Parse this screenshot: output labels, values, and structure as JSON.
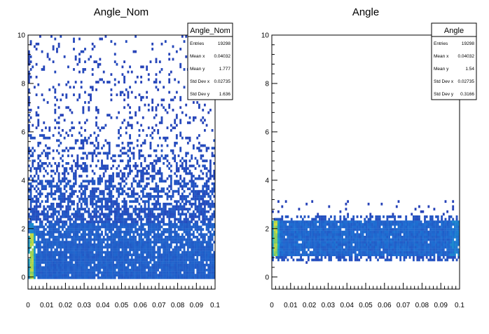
{
  "chart_data": [
    {
      "type": "heatmap",
      "title": "Angle_Nom",
      "xlim": [
        0,
        0.1
      ],
      "ylim": [
        -0.5,
        10
      ],
      "x_ticks": [
        "0",
        "0.01",
        "0.02",
        "0.03",
        "0.04",
        "0.05",
        "0.06",
        "0.07",
        "0.08",
        "0.09",
        "0.1"
      ],
      "y_ticks": [
        "0",
        "2",
        "4",
        "6",
        "8",
        "10"
      ],
      "density": {
        "description": "counts concentrated near y 0 to 2, widely scattered up to 10; hot spot at x about 0.002",
        "core_y": [
          0,
          2
        ],
        "spread_y": [
          0,
          10
        ],
        "hot_x": 0.002
      },
      "stats_box": {
        "title": "Angle_Nom",
        "rows": [
          {
            "label": "Entries",
            "value": "19298"
          },
          {
            "label": "Mean x",
            "value": "0.04032"
          },
          {
            "label": "Mean y",
            "value": "1.777"
          },
          {
            "label": "Std Dev x",
            "value": "0.02735"
          },
          {
            "label": "Std Dev y",
            "value": "1.636"
          }
        ]
      }
    },
    {
      "type": "heatmap",
      "title": "Angle",
      "xlim": [
        0,
        0.1
      ],
      "ylim": [
        -0.5,
        10
      ],
      "x_ticks": [
        "0",
        "0.01",
        "0.02",
        "0.03",
        "0.04",
        "0.05",
        "0.06",
        "0.07",
        "0.08",
        "0.09",
        "0.1"
      ],
      "y_ticks": [
        "0",
        "2",
        "4",
        "6",
        "8",
        "10"
      ],
      "density": {
        "description": "dense horizontal band between y about 0.8 and 2.4 across full x range; hot spot at x about 0.002",
        "core_y": [
          0.8,
          2.4
        ],
        "spread_y": [
          0.7,
          3.2
        ],
        "hot_x": 0.002
      },
      "stats_box": {
        "title": "Angle",
        "rows": [
          {
            "label": "Entries",
            "value": "19298"
          },
          {
            "label": "Mean x",
            "value": "0.04032"
          },
          {
            "label": "Mean y",
            "value": "1.54"
          },
          {
            "label": "Std Dev x",
            "value": "0.02735"
          },
          {
            "label": "Std Dev y",
            "value": "0.3166"
          }
        ]
      }
    }
  ]
}
